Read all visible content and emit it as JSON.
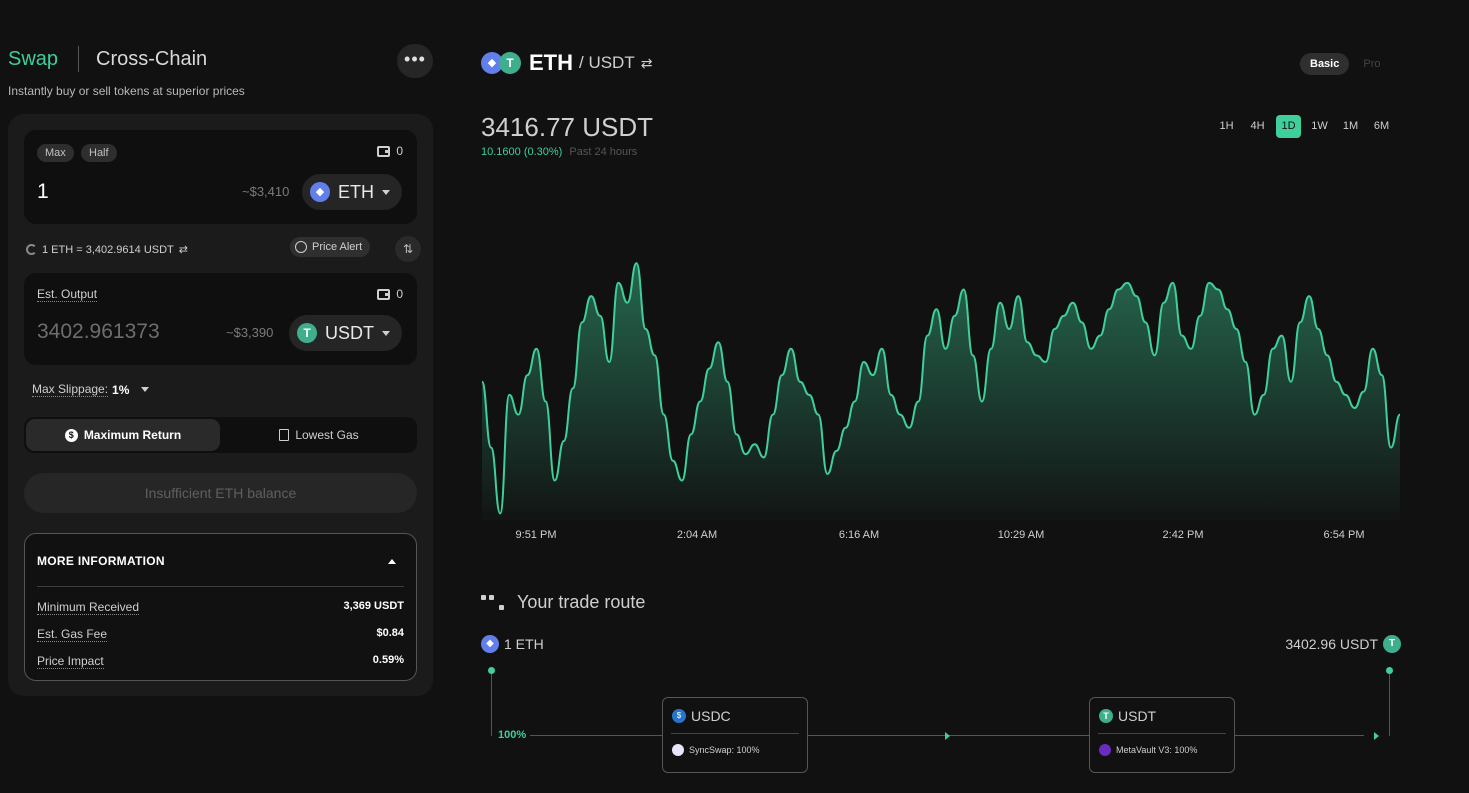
{
  "header": {
    "tab_swap": "Swap",
    "tab_cross_chain": "Cross-Chain",
    "more_button": "•••",
    "subtitle": "Instantly buy or sell tokens at superior prices"
  },
  "input_card": {
    "max_label": "Max",
    "half_label": "Half",
    "balance": "0",
    "amount": "1",
    "usd_value": "~$3,410",
    "token": "ETH"
  },
  "rate": {
    "text": "1 ETH = 3,402.9614 USDT",
    "price_alert_label": "Price Alert"
  },
  "output_card": {
    "label": "Est. Output",
    "balance": "0",
    "amount": "3402.961373",
    "usd_value": "~$3,390",
    "token": "USDT"
  },
  "slippage": {
    "label": "Max Slippage:",
    "value": "1%"
  },
  "route_mode": {
    "max_return": "Maximum Return",
    "lowest_gas": "Lowest Gas"
  },
  "cta_label": "Insufficient ETH balance",
  "more_info": {
    "title": "MORE INFORMATION",
    "rows": [
      {
        "label": "Minimum Received",
        "value": "3,369 USDT"
      },
      {
        "label": "Est. Gas Fee",
        "value": "$0.84"
      },
      {
        "label": "Price Impact",
        "value": "0.59%"
      }
    ]
  },
  "pair": {
    "base": "ETH",
    "quote": "/ USDT"
  },
  "view": {
    "basic": "Basic",
    "pro": "Pro"
  },
  "price": {
    "value": "3416.77 USDT",
    "change": "10.1600 (0.30%)",
    "period": "Past 24 hours"
  },
  "ranges": [
    "1H",
    "4H",
    "1D",
    "1W",
    "1M",
    "6M"
  ],
  "active_range": "1D",
  "colors": {
    "accent": "#3fcf9a",
    "eth": "#627eea",
    "usdt": "#3fae8c",
    "usdc": "#2775ca"
  },
  "chart_data": {
    "type": "area",
    "x_ticks": [
      "9:51 PM",
      "2:04 AM",
      "6:16 AM",
      "10:29 AM",
      "2:42 PM",
      "6:54 PM"
    ],
    "values": [
      3402,
      3382,
      3362,
      3398,
      3392,
      3404,
      3412,
      3396,
      3372,
      3384,
      3400,
      3420,
      3428,
      3422,
      3408,
      3432,
      3426,
      3438,
      3418,
      3410,
      3392,
      3378,
      3372,
      3386,
      3396,
      3406,
      3414,
      3402,
      3386,
      3380,
      3383,
      3379,
      3392,
      3404,
      3412,
      3402,
      3398,
      3392,
      3374,
      3381,
      3388,
      3396,
      3408,
      3404,
      3412,
      3398,
      3392,
      3388,
      3396,
      3416,
      3424,
      3412,
      3422,
      3430,
      3410,
      3396,
      3412,
      3426,
      3418,
      3428,
      3414,
      3410,
      3408,
      3418,
      3422,
      3426,
      3420,
      3412,
      3416,
      3424,
      3430,
      3432,
      3428,
      3420,
      3410,
      3426,
      3432,
      3416,
      3412,
      3422,
      3432,
      3430,
      3424,
      3418,
      3408,
      3392,
      3398,
      3412,
      3416,
      3402,
      3420,
      3428,
      3418,
      3410,
      3402,
      3398,
      3394,
      3399,
      3412,
      3404,
      3382,
      3392
    ],
    "ylim": [
      3360,
      3442
    ]
  },
  "route": {
    "title": "Your trade route",
    "from": "1 ETH",
    "to": "3402.96 USDT",
    "split": "100%",
    "hops": [
      {
        "token": "USDC",
        "dex": "SyncSwap: 100%"
      },
      {
        "token": "USDT",
        "dex": "MetaVault V3: 100%"
      }
    ]
  }
}
